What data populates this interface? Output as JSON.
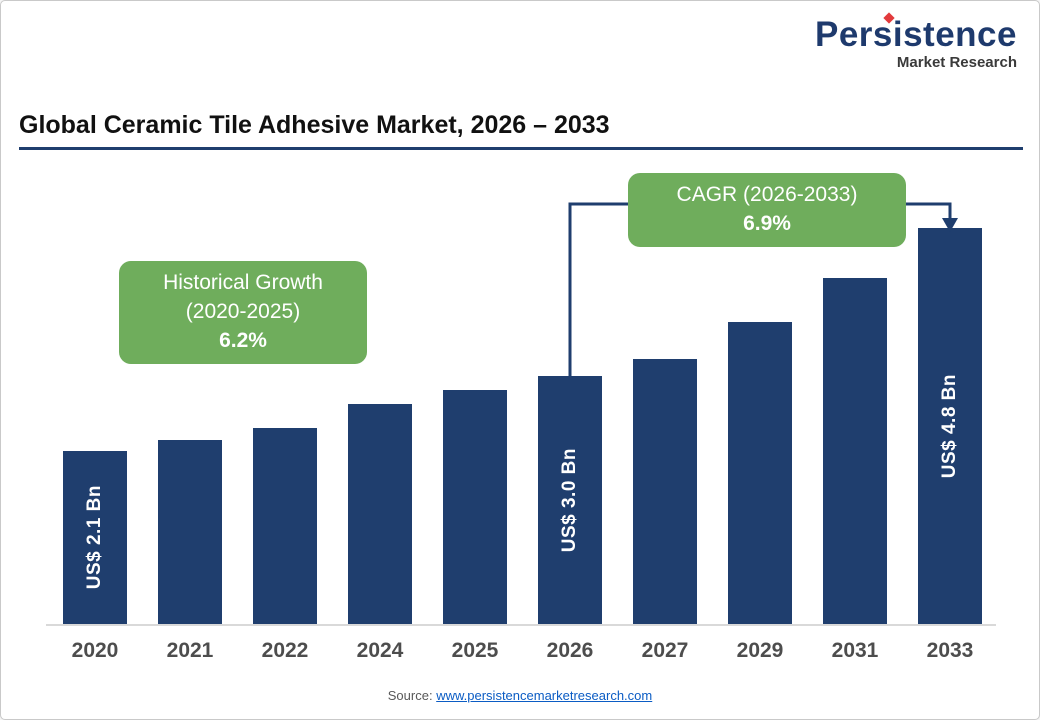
{
  "logo": {
    "title": "Persistence",
    "subtitle": "Market Research"
  },
  "header": {
    "title": "Global Ceramic Tile Adhesive Market, 2026 – 2033"
  },
  "annotations": {
    "historical": {
      "line1": "Historical Growth",
      "line2": "(2020-2025)",
      "value": "6.2%"
    },
    "cagr": {
      "line1": "CAGR (2026-2033)",
      "value": "6.9%"
    }
  },
  "footer": {
    "source_label": "Source:",
    "source_link": "www.persistencemarketresearch.com"
  },
  "colors": {
    "bar": "#1f3e6e",
    "accent_green": "#6fad5c",
    "navy_line": "#1f3e6e",
    "link_blue": "#0b5cc4",
    "logo_navy": "#1e3a6d",
    "logo_red": "#e23a3c"
  },
  "chart_data": {
    "type": "bar",
    "title": "Global Ceramic Tile Adhesive Market, 2026 – 2033",
    "unit": "US$ Bn",
    "categories": [
      "2020",
      "2021",
      "2022",
      "2024",
      "2025",
      "2026",
      "2027",
      "2029",
      "2031",
      "2033"
    ],
    "values": [
      2.1,
      2.23,
      2.37,
      2.67,
      2.84,
      3.0,
      3.21,
      3.66,
      4.19,
      4.8
    ],
    "bar_labels": {
      "2020": "US$ 2.1 Bn",
      "2026": "US$ 3.0 Bn",
      "2033": "US$ 4.8 Bn"
    },
    "ylim": [
      0,
      5.2
    ],
    "grid": false,
    "legend": false,
    "annotations": [
      {
        "text": "Historical Growth (2020-2025) 6.2%",
        "applies_to": [
          "2020",
          "2025"
        ]
      },
      {
        "text": "CAGR (2026-2033) 6.9%",
        "applies_to": [
          "2026",
          "2033"
        ]
      }
    ]
  }
}
